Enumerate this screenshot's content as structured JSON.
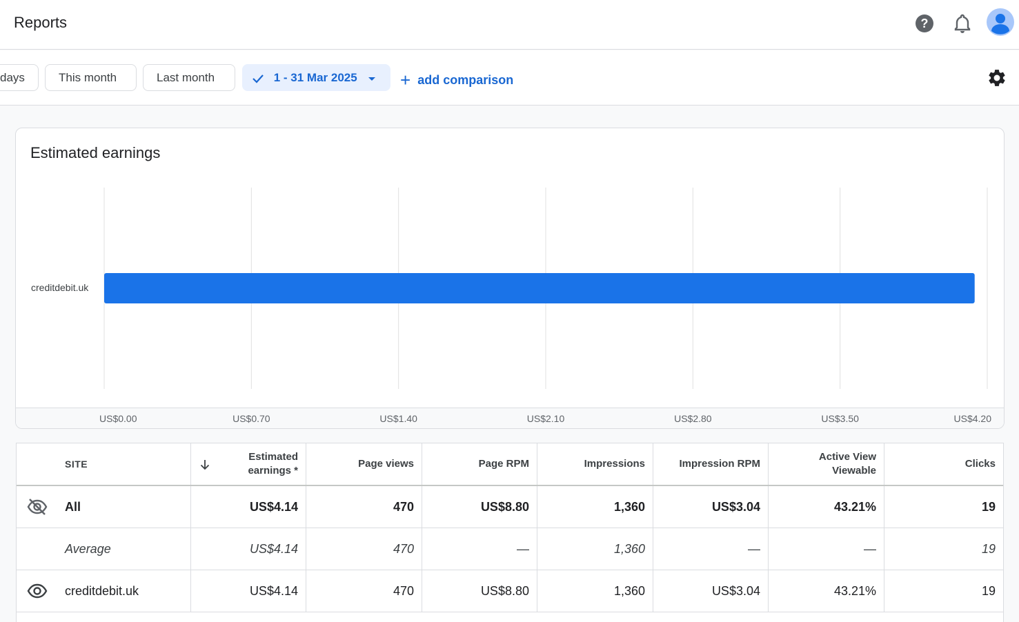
{
  "header": {
    "title": "Reports"
  },
  "filters": {
    "chips": [
      "days",
      "This month",
      "Last month"
    ],
    "date_range": "1 - 31 Mar 2025",
    "add_comparison": "add comparison"
  },
  "colors": {
    "accent": "#1a73e8",
    "bar": "#1a73e8",
    "selected_chip_bg": "#e8f0fe"
  },
  "chart_card": {
    "title": "Estimated earnings"
  },
  "chart_data": {
    "type": "bar",
    "orientation": "horizontal",
    "categories": [
      "creditdebit.uk"
    ],
    "values": [
      4.14
    ],
    "xlim": [
      0,
      4.2
    ],
    "x_ticks": [
      "US$0.00",
      "US$0.70",
      "US$1.40",
      "US$2.10",
      "US$2.80",
      "US$3.50",
      "US$4.20"
    ],
    "x_tick_values": [
      0,
      0.7,
      1.4,
      2.1,
      2.8,
      3.5,
      4.2
    ],
    "grid": true
  },
  "table": {
    "columns": [
      "SITE",
      "Estimated earnings *",
      "Page views",
      "Page RPM",
      "Impressions",
      "Impression RPM",
      "Active View Viewable",
      "Clicks"
    ],
    "rows": [
      {
        "site": "All",
        "earnings": "US$4.14",
        "page_views": "470",
        "page_rpm": "US$8.80",
        "impressions": "1,360",
        "impression_rpm": "US$3.04",
        "active_view": "43.21%",
        "clicks": "19"
      },
      {
        "site": "Average",
        "earnings": "US$4.14",
        "page_views": "470",
        "page_rpm": "—",
        "impressions": "1,360",
        "impression_rpm": "—",
        "active_view": "—",
        "clicks": "19"
      },
      {
        "site": "creditdebit.uk",
        "earnings": "US$4.14",
        "page_views": "470",
        "page_rpm": "US$8.80",
        "impressions": "1,360",
        "impression_rpm": "US$3.04",
        "active_view": "43.21%",
        "clicks": "19"
      }
    ]
  },
  "icons": {
    "help": "help-icon",
    "notifications": "bell-icon",
    "account": "avatar",
    "settings": "gear-icon",
    "check": "check-icon",
    "dropdown": "chevron-down-icon",
    "sort": "arrow-down-icon",
    "hidden": "eye-off-icon",
    "visible": "eye-icon"
  }
}
